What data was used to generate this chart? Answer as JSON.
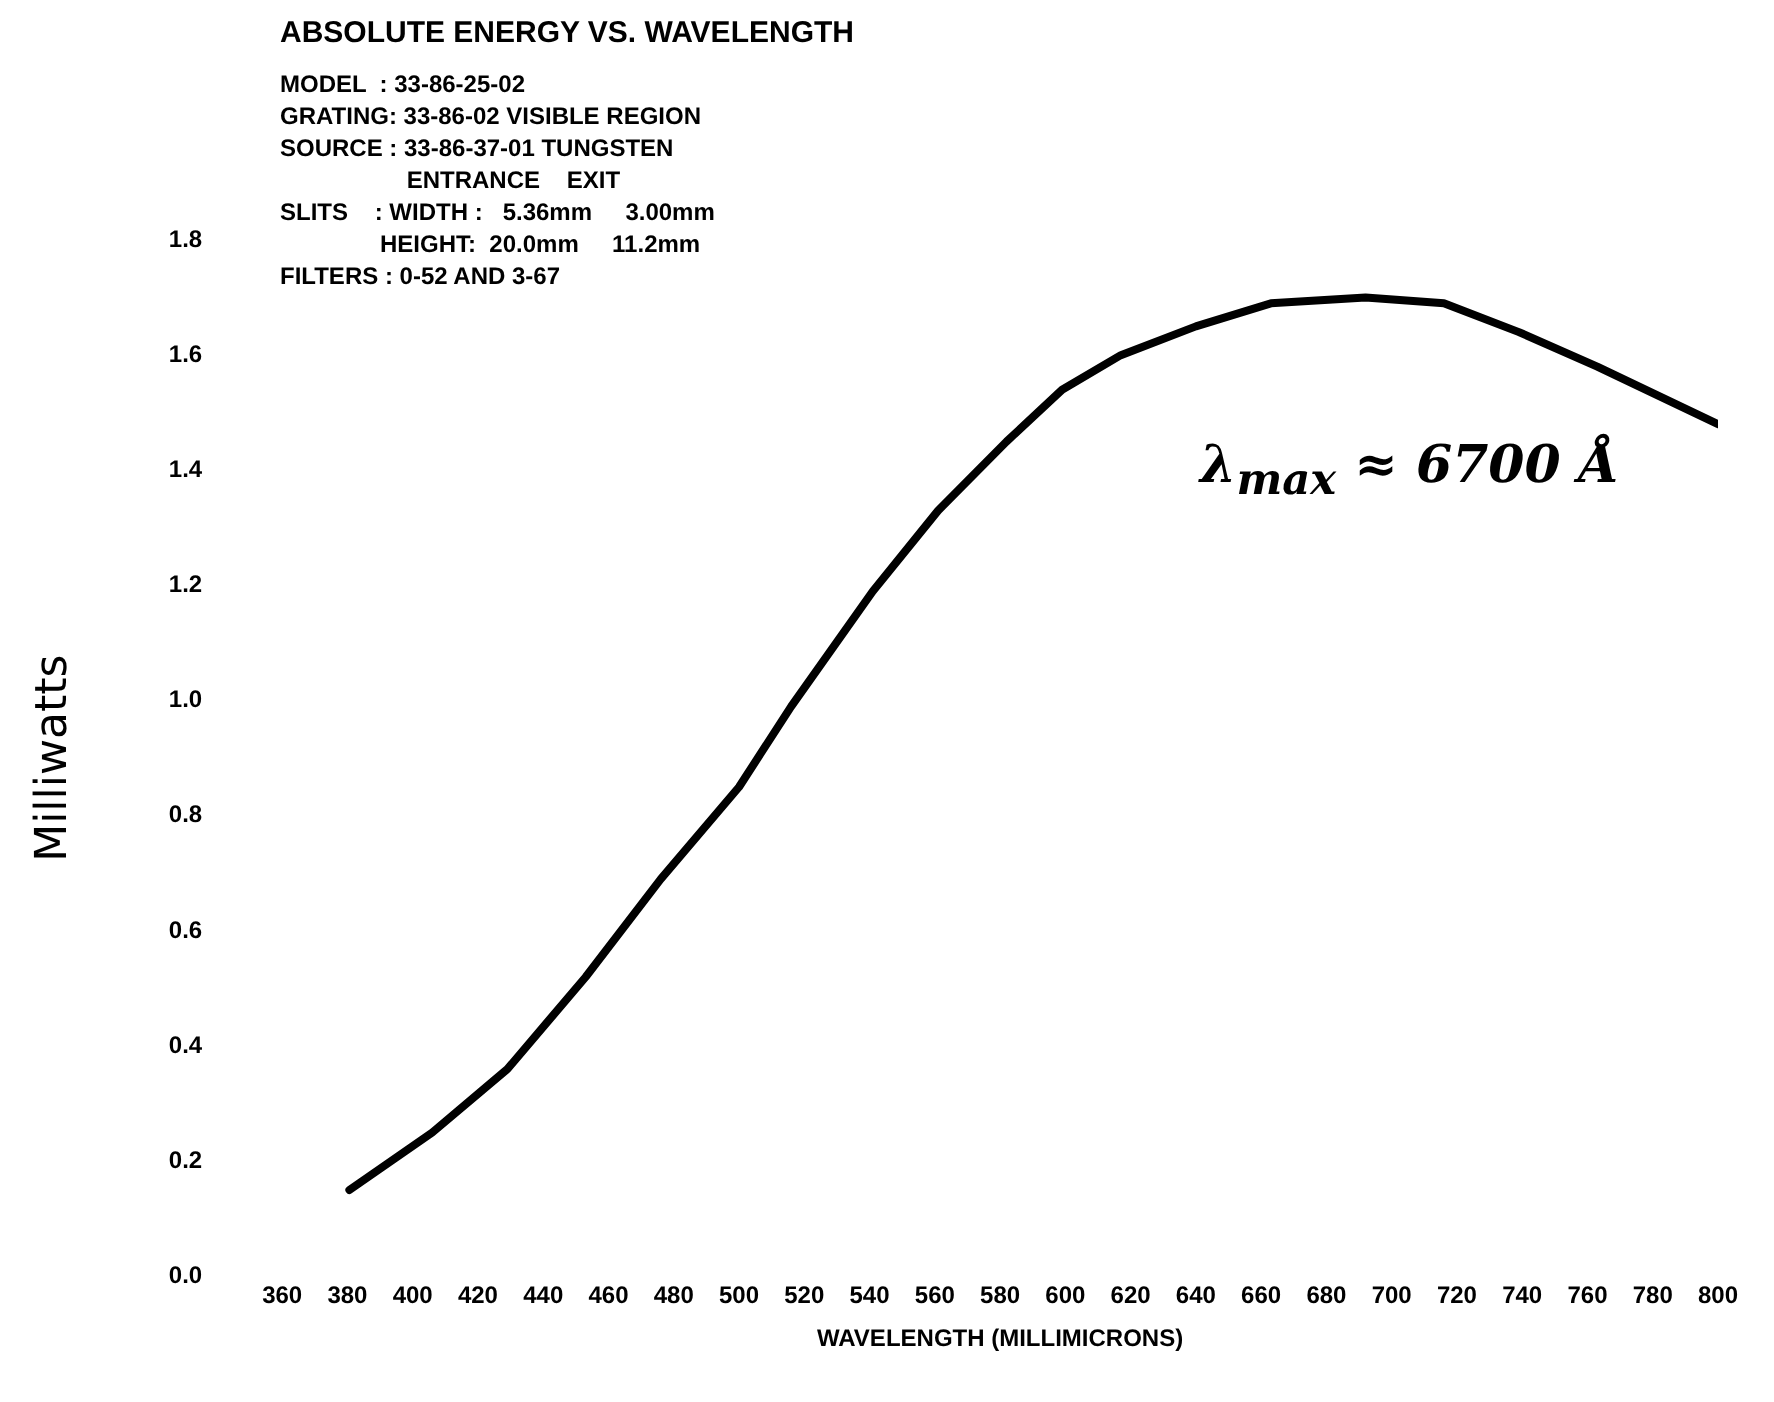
{
  "chart_data": {
    "type": "line",
    "title": "ABSOLUTE ENERGY VS. WAVELENGTH",
    "xlabel": "WAVELENGTH (MILLIMICRONS)",
    "ylabel": "Milliwatts",
    "annotations": [
      "MODEL  : 33-86-25-02",
      "GRATING: 33-86-02 VISIBLE REGION",
      "SOURCE : 33-86-37-01 TUNGSTEN",
      "                   ENTRANCE    EXIT",
      "SLITS    : WIDTH :   5.36mm     3.00mm",
      "               HEIGHT:  20.0mm     11.2mm",
      "FILTERS : 0-52 AND 3-67",
      "λ$_{max}$ ≈ 6700 Å"
    ],
    "x": [
      380.6,
      406,
      429,
      453,
      476,
      500,
      516,
      541,
      561,
      582,
      599,
      617,
      640,
      663,
      692,
      716,
      739,
      763,
      800
    ],
    "series": [
      {
        "color": "#000000",
        "values": [
          0.15,
          0.25,
          0.36,
          0.52,
          0.69,
          0.85,
          0.99,
          1.19,
          1.33,
          1.45,
          1.54,
          1.6,
          1.65,
          1.69,
          1.7,
          1.69,
          1.64,
          1.58,
          1.48
        ]
      }
    ],
    "xlim": [
      360,
      800
    ],
    "xticks": [
      360,
      380,
      400,
      420,
      440,
      460,
      480,
      500,
      520,
      540,
      560,
      580,
      600,
      620,
      640,
      660,
      680,
      700,
      720,
      740,
      760,
      780,
      800
    ],
    "ylim": [
      0,
      1.8
    ],
    "yticks": [
      {
        "value": 0,
        "label": "0.0"
      },
      0.2,
      0.4,
      0.6,
      0.8,
      {
        "value": 1,
        "label": "1.0"
      },
      1.2,
      1.4,
      1.6,
      1.8
    ],
    "grid": false,
    "legend": false,
    "marker": "none",
    "line_style": "solid"
  }
}
